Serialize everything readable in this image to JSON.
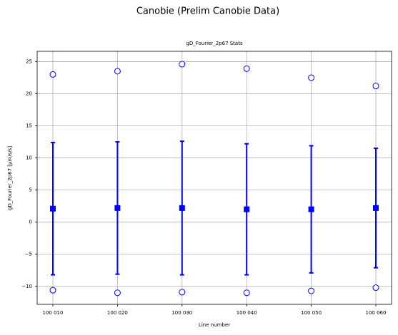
{
  "chart_data": {
    "type": "errorbar",
    "suptitle": "Canobie (Prelim Canobie Data)",
    "title": "gD_Fourier_2p67 Stats",
    "xlabel": "Line number",
    "ylabel": "gD_Fourier_2p67 [µm/s/s]",
    "categories": [
      "100 010",
      "100 020",
      "100 030",
      "100 040",
      "100 050",
      "100 060"
    ],
    "mean": [
      2.1,
      2.2,
      2.2,
      2.0,
      2.0,
      2.2
    ],
    "error": [
      10.3,
      10.3,
      10.4,
      10.2,
      9.9,
      9.3
    ],
    "max": [
      23.0,
      23.5,
      24.6,
      23.9,
      22.5,
      21.2
    ],
    "min": [
      -10.6,
      -11.0,
      -10.9,
      -11.0,
      -10.7,
      -10.2
    ],
    "color": "#0000ff",
    "ylim": [
      -12.8,
      26.6
    ],
    "yticks": [
      {
        "value": -10,
        "label": "−10"
      },
      {
        "value": -5,
        "label": "−5"
      },
      0,
      5,
      10,
      15,
      20,
      25
    ],
    "grid": true
  }
}
